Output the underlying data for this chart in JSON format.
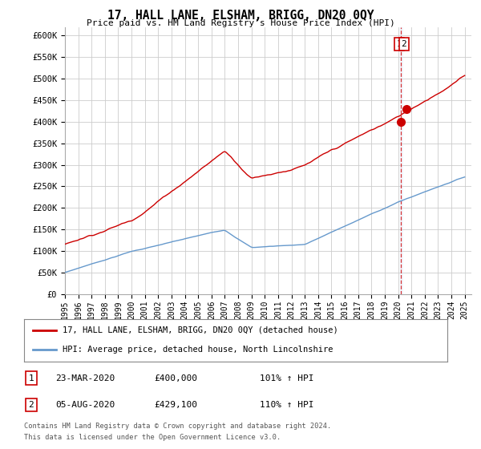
{
  "title": "17, HALL LANE, ELSHAM, BRIGG, DN20 0QY",
  "subtitle": "Price paid vs. HM Land Registry's House Price Index (HPI)",
  "ylim": [
    0,
    620000
  ],
  "yticks": [
    0,
    50000,
    100000,
    150000,
    200000,
    250000,
    300000,
    350000,
    400000,
    450000,
    500000,
    550000,
    600000
  ],
  "ytick_labels": [
    "£0",
    "£50K",
    "£100K",
    "£150K",
    "£200K",
    "£250K",
    "£300K",
    "£350K",
    "£400K",
    "£450K",
    "£500K",
    "£550K",
    "£600K"
  ],
  "hpi_color": "#6699cc",
  "price_color": "#cc0000",
  "background_color": "#ffffff",
  "grid_color": "#cccccc",
  "dashed_color": "#cc0000",
  "dashed_fill_color": "#ddeeff",
  "sale1_x_year": 2020.22,
  "sale1_y": 400000,
  "sale2_x_year": 2020.6,
  "sale2_y": 429100,
  "sale1_label": "1",
  "sale2_label": "2",
  "sale1_date": "23-MAR-2020",
  "sale1_price": "£400,000",
  "sale1_hpi": "101% ↑ HPI",
  "sale2_date": "05-AUG-2020",
  "sale2_price": "£429,100",
  "sale2_hpi": "110% ↑ HPI",
  "legend_label1": "17, HALL LANE, ELSHAM, BRIGG, DN20 0QY (detached house)",
  "legend_label2": "HPI: Average price, detached house, North Lincolnshire",
  "footnote_line1": "Contains HM Land Registry data © Crown copyright and database right 2024.",
  "footnote_line2": "This data is licensed under the Open Government Licence v3.0.",
  "xlim_left": 1995,
  "xlim_right": 2025.5
}
